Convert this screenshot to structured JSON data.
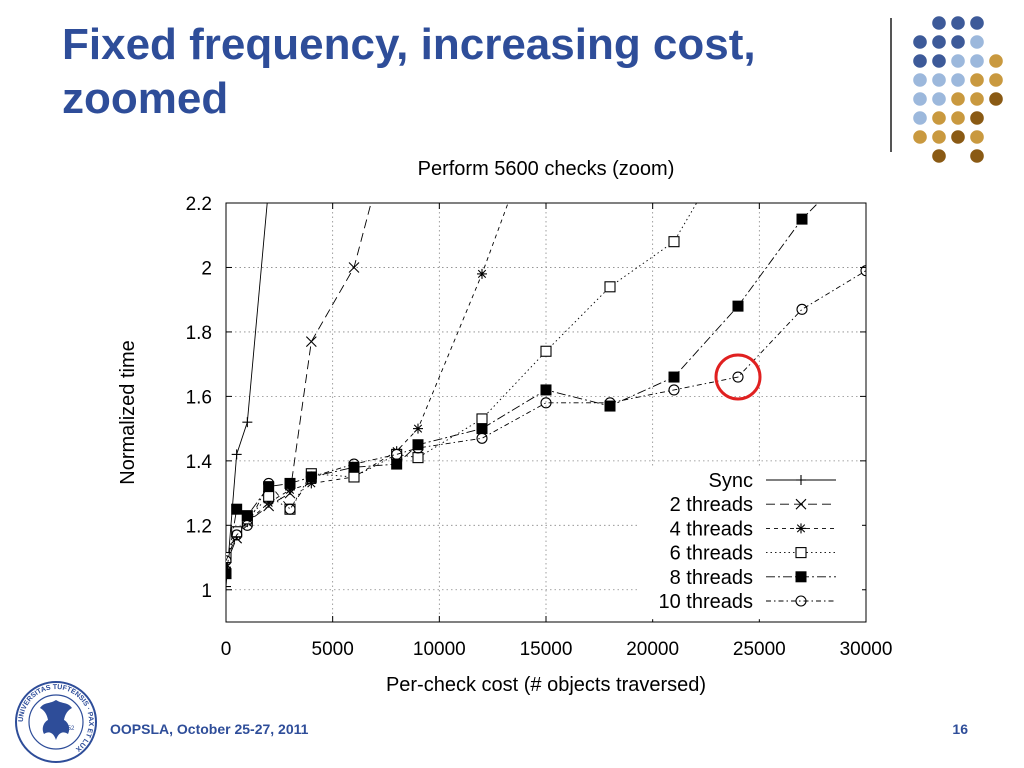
{
  "slide": {
    "title": "Fixed frequency, increasing cost, zoomed",
    "footer": "OOPSLA, October 25-27, 2011",
    "page_number": "16",
    "logo": {
      "name": "university-seal",
      "text": "UNIVERSITAS TUFTENSIS · PAX ET LUX",
      "year": "1852"
    },
    "colors": {
      "title": "#2e4d99",
      "dot_blue": "#3d5a99",
      "dot_light": "#9cb8dc",
      "dot_tan": "#c9993f",
      "dot_brown": "#8a5a14",
      "highlight": "#e02020"
    }
  },
  "chart_data": {
    "type": "line",
    "title": "Perform 5600 checks (zoom)",
    "xlabel": "Per-check cost (# objects traversed)",
    "ylabel": "Normalized time",
    "xlim": [
      0,
      30000
    ],
    "ylim": [
      0.9,
      2.2
    ],
    "xticks": [
      0,
      5000,
      10000,
      15000,
      20000,
      25000,
      30000
    ],
    "yticks": [
      1,
      1.2,
      1.4,
      1.6,
      1.8,
      2,
      2.2
    ],
    "xtick_labels": [
      "0",
      "5000",
      "10000",
      "15000",
      "20000",
      "25000",
      "30000"
    ],
    "ytick_labels": [
      "1",
      "1.2",
      "1.4",
      "1.6",
      "1.8",
      "2",
      "2.2"
    ],
    "grid": true,
    "legend_position": "bottom-right",
    "highlight": {
      "x": 24000,
      "y": 1.66,
      "shape": "circle"
    },
    "series": [
      {
        "name": "Sync",
        "marker": "plus",
        "dash": "",
        "x": [
          0,
          500,
          1000,
          2000
        ],
        "y": [
          1.01,
          1.42,
          1.52,
          2.25
        ]
      },
      {
        "name": "2 threads",
        "marker": "x",
        "dash": "9,5",
        "x": [
          0,
          500,
          1000,
          2000,
          3000,
          4000,
          6000,
          7000
        ],
        "y": [
          1.08,
          1.16,
          1.21,
          1.26,
          1.3,
          1.77,
          2.0,
          2.25
        ]
      },
      {
        "name": "4 threads",
        "marker": "star",
        "dash": "4,4",
        "x": [
          0,
          500,
          1000,
          2000,
          3000,
          4000,
          6000,
          8000,
          9000,
          12000,
          13500
        ],
        "y": [
          1.07,
          1.17,
          1.21,
          1.27,
          1.31,
          1.33,
          1.35,
          1.43,
          1.5,
          1.98,
          2.25
        ]
      },
      {
        "name": "6 threads",
        "marker": "square-open",
        "dash": "1.5,3",
        "x": [
          0,
          500,
          1000,
          2000,
          3000,
          4000,
          6000,
          8000,
          9000,
          12000,
          15000,
          18000,
          21000,
          22500
        ],
        "y": [
          1.1,
          1.18,
          1.22,
          1.29,
          1.25,
          1.36,
          1.35,
          1.42,
          1.41,
          1.53,
          1.74,
          1.94,
          2.08,
          2.25
        ]
      },
      {
        "name": "8 threads",
        "marker": "square-filled",
        "dash": "9,3,2,3",
        "x": [
          0,
          500,
          1000,
          2000,
          3000,
          4000,
          6000,
          8000,
          9000,
          12000,
          15000,
          18000,
          21000,
          24000,
          27000,
          28500
        ],
        "y": [
          1.05,
          1.25,
          1.23,
          1.32,
          1.33,
          1.35,
          1.38,
          1.39,
          1.45,
          1.5,
          1.62,
          1.57,
          1.66,
          1.88,
          2.15,
          2.25
        ]
      },
      {
        "name": "10 threads",
        "marker": "circle-open",
        "dash": "5,3,1.5,3",
        "x": [
          0,
          500,
          1000,
          2000,
          3000,
          4000,
          6000,
          8000,
          9000,
          12000,
          15000,
          18000,
          21000,
          24000,
          27000,
          30000
        ],
        "y": [
          1.09,
          1.17,
          1.2,
          1.33,
          1.25,
          1.35,
          1.39,
          1.42,
          1.44,
          1.47,
          1.58,
          1.58,
          1.62,
          1.66,
          1.87,
          1.99
        ]
      }
    ]
  }
}
